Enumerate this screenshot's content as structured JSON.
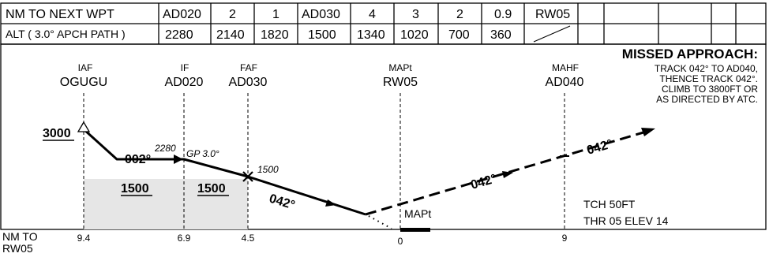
{
  "table": {
    "row1": [
      "NM TO NEXT WPT",
      "AD020",
      "2",
      "1",
      "AD030",
      "4",
      "3",
      "2",
      "0.9",
      "RW05",
      "",
      "",
      "",
      ""
    ],
    "row2": [
      "ALT ( 3.0° APCH PATH )",
      "2280",
      "2140",
      "1820",
      "1500",
      "1340",
      "1020",
      "700",
      "360",
      "",
      "",
      "",
      "",
      ""
    ]
  },
  "fixes": {
    "iaf": {
      "role": "IAF",
      "name": "OGUGU"
    },
    "if": {
      "role": "IF",
      "name": "AD020"
    },
    "faf": {
      "role": "FAF",
      "name": "AD030"
    },
    "mapt": {
      "role": "MAPt",
      "name": "RW05"
    },
    "mahf": {
      "role": "MAHF",
      "name": "AD040"
    }
  },
  "missed": {
    "title": "MISSED APPROACH:",
    "lines": [
      "TRACK 042° TO AD040,",
      "THENCE TRACK 042°.",
      "CLIMB TO 3800FT OR",
      "AS DIRECTED BY ATC."
    ]
  },
  "profile": {
    "iaf_alt": "3000",
    "track_1": "002°",
    "if_alt": "2280",
    "gp": "GP 3.0°",
    "faf_alt": "1500",
    "track_final": "042°",
    "track_missed_1": "042°",
    "track_missed_2": "042°",
    "msa_1": "1500",
    "msa_2": "1500",
    "mapt_label": "MAPt",
    "tch": "TCH 50FT",
    "thr": "THR 05 ELEV 14"
  },
  "distance_scale": {
    "title_line1": "NM TO",
    "title_line2": "RW05",
    "ticks": [
      "9.4",
      "6.9",
      "4.5",
      "0",
      "9"
    ]
  }
}
